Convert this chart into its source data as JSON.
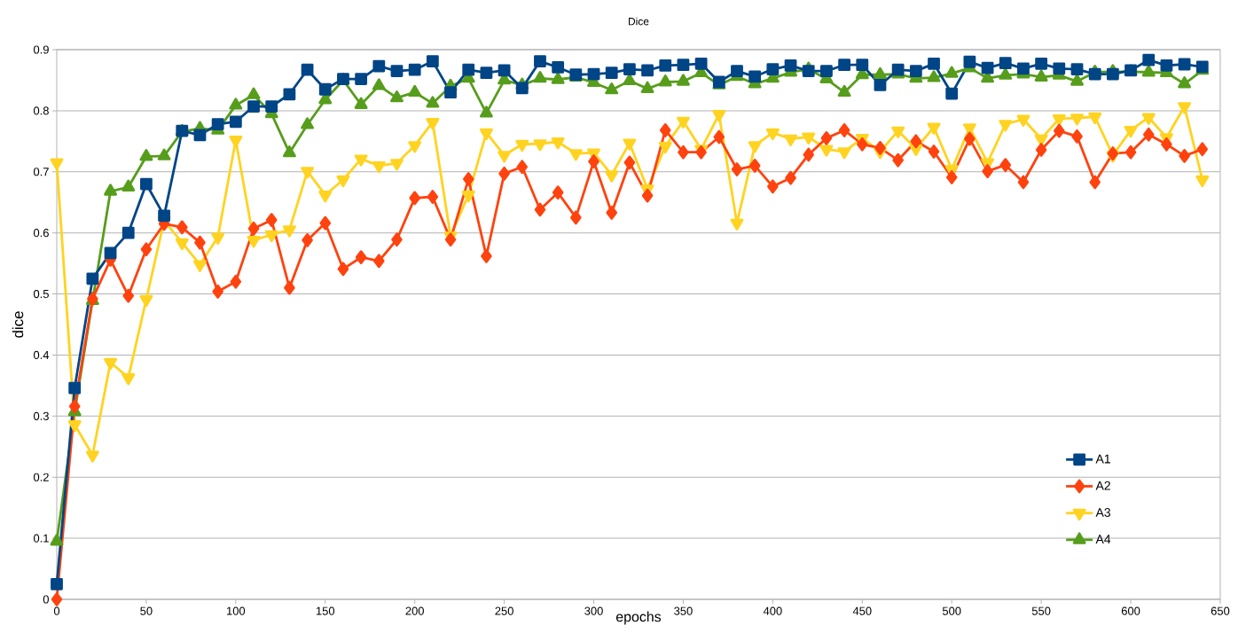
{
  "chart_data": {
    "type": "line",
    "title": "Dice",
    "xlabel": "epochs",
    "ylabel": "dice",
    "x": [
      0,
      10,
      20,
      30,
      40,
      50,
      60,
      70,
      80,
      90,
      100,
      110,
      120,
      130,
      140,
      150,
      160,
      170,
      180,
      190,
      200,
      210,
      220,
      230,
      240,
      250,
      260,
      270,
      280,
      290,
      300,
      310,
      320,
      330,
      340,
      350,
      360,
      370,
      380,
      390,
      400,
      410,
      420,
      430,
      440,
      450,
      460,
      470,
      480,
      490,
      500,
      510,
      520,
      530,
      540,
      550,
      560,
      570,
      580,
      590,
      600,
      610,
      620,
      630,
      640
    ],
    "series": [
      {
        "name": "A1",
        "color": "#004586",
        "marker": "square",
        "values": [
          0.025,
          0.346,
          0.525,
          0.567,
          0.6,
          0.68,
          0.628,
          0.767,
          0.76,
          0.778,
          0.782,
          0.807,
          0.807,
          0.827,
          0.867,
          0.835,
          0.852,
          0.852,
          0.873,
          0.865,
          0.867,
          0.881,
          0.83,
          0.867,
          0.862,
          0.866,
          0.837,
          0.881,
          0.871,
          0.859,
          0.86,
          0.862,
          0.868,
          0.866,
          0.874,
          0.875,
          0.877,
          0.847,
          0.865,
          0.856,
          0.868,
          0.874,
          0.865,
          0.865,
          0.875,
          0.875,
          0.842,
          0.867,
          0.865,
          0.877,
          0.828,
          0.88,
          0.87,
          0.878,
          0.869,
          0.877,
          0.869,
          0.868,
          0.86,
          0.86,
          0.866,
          0.883,
          0.874,
          0.876,
          0.872
        ]
      },
      {
        "name": "A2",
        "color": "#ff420e",
        "marker": "diamond",
        "values": [
          0,
          0.316,
          0.492,
          0.556,
          0.497,
          0.573,
          0.615,
          0.609,
          0.584,
          0.504,
          0.52,
          0.607,
          0.621,
          0.51,
          0.588,
          0.616,
          0.541,
          0.56,
          0.554,
          0.589,
          0.657,
          0.659,
          0.589,
          0.688,
          0.562,
          0.697,
          0.708,
          0.638,
          0.666,
          0.625,
          0.717,
          0.633,
          0.715,
          0.661,
          0.768,
          0.732,
          0.732,
          0.757,
          0.704,
          0.71,
          0.676,
          0.69,
          0.728,
          0.755,
          0.768,
          0.745,
          0.739,
          0.719,
          0.75,
          0.733,
          0.691,
          0.754,
          0.701,
          0.711,
          0.683,
          0.736,
          0.767,
          0.758,
          0.683,
          0.73,
          0.732,
          0.761,
          0.745,
          0.726,
          0.737
        ]
      },
      {
        "name": "A3",
        "color": "#ffd320",
        "marker": "triangle-down",
        "values": [
          0.715,
          0.286,
          0.236,
          0.388,
          0.363,
          0.491,
          0.62,
          0.584,
          0.548,
          0.593,
          0.752,
          0.588,
          0.597,
          0.605,
          0.701,
          0.662,
          0.687,
          0.721,
          0.71,
          0.714,
          0.743,
          0.781,
          0.595,
          0.662,
          0.764,
          0.727,
          0.745,
          0.746,
          0.749,
          0.73,
          0.731,
          0.695,
          0.747,
          0.672,
          0.742,
          0.783,
          0.737,
          0.794,
          0.616,
          0.743,
          0.764,
          0.754,
          0.757,
          0.737,
          0.733,
          0.755,
          0.733,
          0.767,
          0.738,
          0.773,
          0.704,
          0.772,
          0.715,
          0.778,
          0.786,
          0.754,
          0.787,
          0.788,
          0.79,
          0.727,
          0.768,
          0.789,
          0.756,
          0.807,
          0.687
        ]
      },
      {
        "name": "A4",
        "color": "#579d1c",
        "marker": "triangle",
        "values": [
          0.095,
          0.307,
          0.489,
          0.668,
          0.675,
          0.725,
          0.726,
          0.766,
          0.771,
          0.768,
          0.809,
          0.826,
          0.795,
          0.731,
          0.777,
          0.818,
          0.85,
          0.81,
          0.841,
          0.821,
          0.83,
          0.812,
          0.84,
          0.853,
          0.796,
          0.85,
          0.842,
          0.853,
          0.851,
          0.855,
          0.846,
          0.834,
          0.849,
          0.836,
          0.847,
          0.848,
          0.862,
          0.842,
          0.856,
          0.844,
          0.853,
          0.863,
          0.868,
          0.852,
          0.83,
          0.859,
          0.859,
          0.86,
          0.853,
          0.854,
          0.861,
          0.87,
          0.853,
          0.858,
          0.86,
          0.855,
          0.858,
          0.848,
          0.863,
          0.864,
          0.864,
          0.863,
          0.862,
          0.844,
          0.866
        ]
      }
    ],
    "xlim": [
      0,
      650
    ],
    "xticks": [
      0,
      50,
      100,
      150,
      200,
      250,
      300,
      350,
      400,
      450,
      500,
      550,
      600,
      650
    ],
    "ylim": [
      0,
      0.9
    ],
    "yticks": [
      0,
      0.1,
      0.2,
      0.3,
      0.4,
      0.5,
      0.6,
      0.7,
      0.8,
      0.9
    ],
    "grid": "y",
    "legend": "bottom right",
    "line_style": "solid"
  }
}
